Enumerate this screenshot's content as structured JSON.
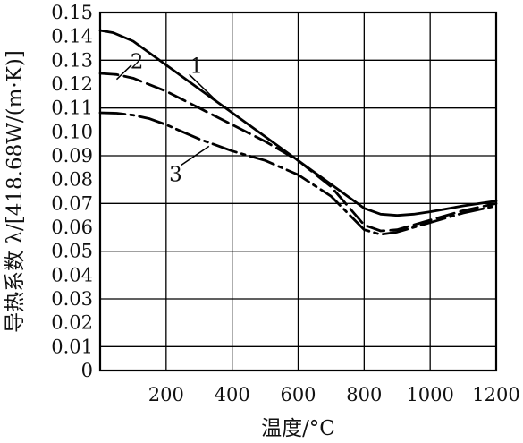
{
  "chart_data": {
    "type": "line",
    "xlabel": "温度/°C",
    "ylabel": "导热系数 λ/[418.68W/(m·K)]",
    "xlim": [
      0,
      1200
    ],
    "ylim": [
      0,
      0.15
    ],
    "x_ticks": [
      200,
      400,
      600,
      800,
      1000,
      1200
    ],
    "x_tick_labels": [
      "200",
      "400",
      "600",
      "800",
      "1000",
      "1200"
    ],
    "y_ticks": [
      0,
      0.01,
      0.02,
      0.03,
      0.04,
      0.05,
      0.06,
      0.07,
      0.08,
      0.09,
      0.1,
      0.11,
      0.12,
      0.13,
      0.14,
      0.15
    ],
    "y_tick_labels": [
      "0",
      "0.01",
      "0.02",
      "0.03",
      "0.04",
      "0.05",
      "0.06",
      "0.07",
      "0.08",
      "0.09",
      "0.10",
      "0.11",
      "0.12",
      "0.13",
      "0.14",
      "0.15"
    ],
    "grid": true,
    "series": [
      {
        "name": "1",
        "dash": "solid",
        "x": [
          0,
          40,
          100,
          200,
          300,
          400,
          500,
          600,
          700,
          750,
          800,
          850,
          900,
          950,
          1000,
          1100,
          1200
        ],
        "y": [
          0.1425,
          0.1415,
          0.138,
          0.128,
          0.118,
          0.108,
          0.098,
          0.088,
          0.078,
          0.073,
          0.068,
          0.0655,
          0.065,
          0.0655,
          0.0665,
          0.069,
          0.071
        ]
      },
      {
        "name": "2",
        "dash": "dashed",
        "x": [
          0,
          50,
          100,
          200,
          300,
          400,
          500,
          600,
          700,
          750,
          800,
          850,
          900,
          1000,
          1100,
          1200
        ],
        "y": [
          0.1245,
          0.124,
          0.1225,
          0.117,
          0.11,
          0.103,
          0.096,
          0.088,
          0.077,
          0.069,
          0.061,
          0.0585,
          0.059,
          0.063,
          0.067,
          0.07
        ]
      },
      {
        "name": "3",
        "dash": "dashdot",
        "x": [
          0,
          50,
          100,
          150,
          200,
          300,
          400,
          500,
          600,
          700,
          750,
          800,
          850,
          900,
          1000,
          1100,
          1200
        ],
        "y": [
          0.108,
          0.1078,
          0.107,
          0.1055,
          0.103,
          0.097,
          0.092,
          0.088,
          0.082,
          0.073,
          0.066,
          0.059,
          0.057,
          0.058,
          0.062,
          0.066,
          0.069
        ]
      }
    ]
  }
}
